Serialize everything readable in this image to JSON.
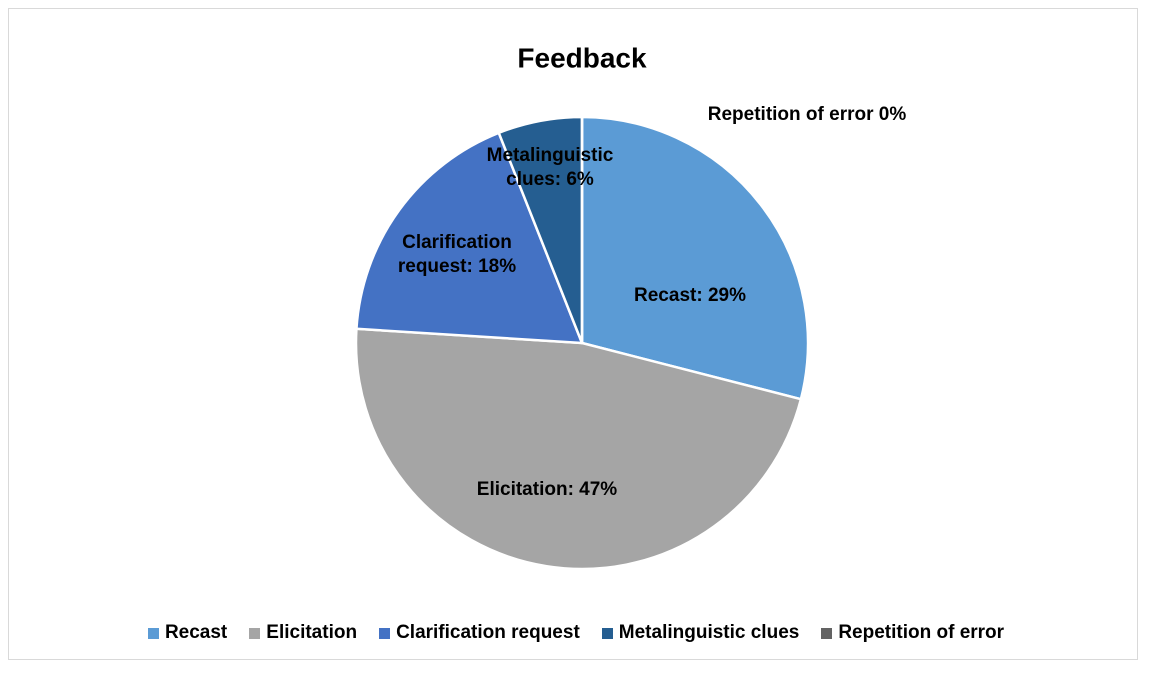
{
  "chart_data": {
    "type": "pie",
    "title": "Feedback",
    "categories": [
      "Recast",
      "Elicitation",
      "Clarification request",
      "Metalinguistic clues",
      "Repetition of error"
    ],
    "values": [
      29,
      47,
      18,
      6,
      0
    ],
    "value_labels": [
      "Recast: 29%",
      "Elicitation: 47%",
      "Clarification request: 18%",
      "Metalinguistic clues:  6%",
      "Repetition of error 0%"
    ],
    "colors": [
      "#5b9bd5",
      "#a5a5a5",
      "#4472c4",
      "#255e91",
      "#636363"
    ],
    "legend": "bottom"
  }
}
